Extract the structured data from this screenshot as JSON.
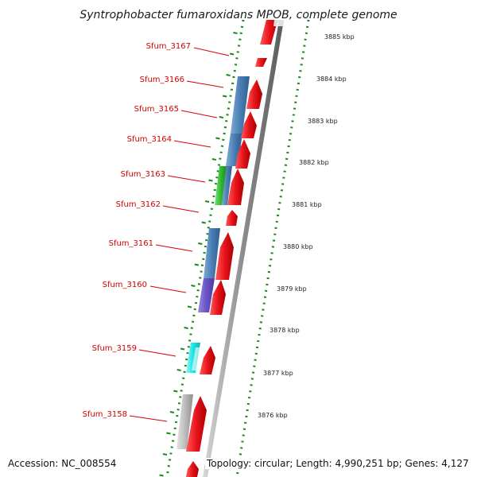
{
  "title": "Syntrophobacter fumaroxidans MPOB, complete genome",
  "footer": {
    "accession": "Accession: NC_008554",
    "topology": "Topology: circular; Length: 4,990,251 bp; Genes: 4,127"
  },
  "colors": {
    "forward_cds": "#e8141c",
    "label": "#d40000",
    "ring_dots": "#1a8a1a",
    "backbone": "#8c8c8c"
  },
  "kbp_ticks": [
    {
      "kbp": 3885,
      "label": "3885 kbp"
    },
    {
      "kbp": 3884,
      "label": "3884 kbp"
    },
    {
      "kbp": 3883,
      "label": "3883 kbp"
    },
    {
      "kbp": 3882,
      "label": "3882 kbp"
    },
    {
      "kbp": 3881,
      "label": "3881 kbp"
    },
    {
      "kbp": 3880,
      "label": "3880 kbp"
    },
    {
      "kbp": 3879,
      "label": "3879 kbp"
    },
    {
      "kbp": 3878,
      "label": "3878 kbp"
    },
    {
      "kbp": 3877,
      "label": "3877 kbp"
    },
    {
      "kbp": 3876,
      "label": "3876 kbp"
    }
  ],
  "genes": [
    {
      "name": "Sfum_3167",
      "strand": "forward"
    },
    {
      "name": "Sfum_3166",
      "strand": "forward",
      "cog_color": "#4a7fb5"
    },
    {
      "name": "Sfum_3165",
      "strand": "forward",
      "cog_color": "#4a7fb5"
    },
    {
      "name": "Sfum_3164",
      "strand": "forward",
      "cog_color": "#4a7fb5"
    },
    {
      "name": "Sfum_3163",
      "strand": "forward",
      "cog_color": "#33bb33"
    },
    {
      "name": "Sfum_3162",
      "strand": "forward"
    },
    {
      "name": "Sfum_3161",
      "strand": "forward",
      "cog_color": "#4a7fb5"
    },
    {
      "name": "Sfum_3160",
      "strand": "forward",
      "cog_color": "#6a55c8"
    },
    {
      "name": "Sfum_3159",
      "strand": "forward",
      "cog_color": "#18e6e6"
    },
    {
      "name": "Sfum_3158",
      "strand": "forward",
      "cog_color": "#bdbdbd"
    }
  ]
}
